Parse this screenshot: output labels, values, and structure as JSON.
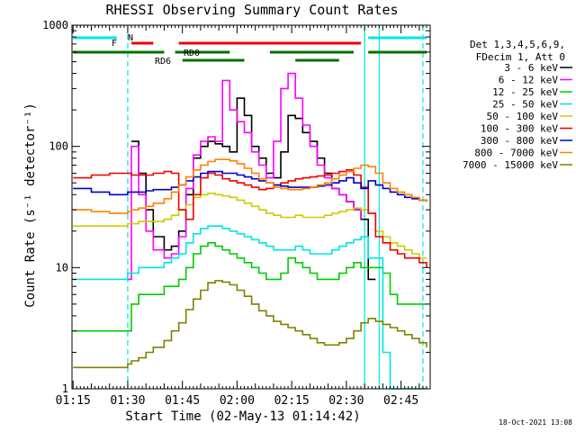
{
  "chart_data": {
    "type": "line",
    "title": "RHESSI Observing Summary Count Rates",
    "xlabel": "Start Time (02-May-13 01:14:42)",
    "ylabel": "Count Rate (s⁻¹ detector⁻¹)",
    "y_scale": "log",
    "ylim": [
      1,
      1000
    ],
    "xlim": [
      "01:14:42",
      "02:53:00"
    ],
    "x_tick_labels": [
      "01:15",
      "01:30",
      "01:45",
      "02:00",
      "02:15",
      "02:30",
      "02:45"
    ],
    "y_tick_labels": [
      "1",
      "10",
      "100",
      "1000"
    ],
    "legend_position": "right",
    "legend_header": [
      "Det 1,3,4,5,6,9,",
      "FDecim 1, Att 0"
    ],
    "timestamp": "18-Oct-2021 13:08",
    "flags": [
      {
        "label": "N",
        "color": "#00e5e5",
        "segments": [
          [
            "01:15",
            "01:27"
          ],
          [
            "02:36",
            "02:52"
          ]
        ]
      },
      {
        "label": "F",
        "color": "#ee0000",
        "segments": [
          [
            "01:31",
            "01:37"
          ],
          [
            "01:44",
            "02:34"
          ]
        ]
      },
      {
        "label": "RD0",
        "color": "#007000",
        "segments": [
          [
            "01:15",
            "01:40"
          ],
          [
            "01:43",
            "01:58"
          ],
          [
            "02:09",
            "02:32"
          ],
          [
            "02:36",
            "02:52"
          ]
        ]
      },
      {
        "label": "RD6",
        "color": "#007000",
        "segments": [
          [
            "01:45",
            "02:02"
          ],
          [
            "02:16",
            "02:28"
          ]
        ]
      }
    ],
    "vertical_markers": [
      {
        "time": "01:30",
        "style": "dashed",
        "color": "#00e5e5"
      },
      {
        "time": "02:35",
        "style": "solid",
        "color": "#00e5e5"
      },
      {
        "time": "02:39",
        "style": "solid",
        "color": "#00e5e5"
      },
      {
        "time": "02:51",
        "style": "dashed",
        "color": "#00e5e5"
      }
    ],
    "x": [
      "01:15",
      "01:20",
      "01:25",
      "01:27",
      "01:29",
      "01:30",
      "01:31",
      "01:33",
      "01:35",
      "01:37",
      "01:40",
      "01:42",
      "01:44",
      "01:46",
      "01:48",
      "01:50",
      "01:52",
      "01:54",
      "01:56",
      "01:58",
      "02:00",
      "02:02",
      "02:04",
      "02:06",
      "02:08",
      "02:10",
      "02:12",
      "02:14",
      "02:16",
      "02:18",
      "02:20",
      "02:22",
      "02:24",
      "02:26",
      "02:28",
      "02:30",
      "02:32",
      "02:34",
      "02:36",
      "02:38",
      "02:40",
      "02:42",
      "02:44",
      "02:46",
      "02:48",
      "02:50",
      "02:52"
    ],
    "series": [
      {
        "name": "3 - 6 keV",
        "color": "#000000",
        "values": [
          null,
          null,
          null,
          null,
          null,
          null,
          110,
          60,
          30,
          18,
          14,
          15,
          20,
          40,
          80,
          100,
          110,
          105,
          100,
          90,
          250,
          180,
          100,
          80,
          60,
          55,
          90,
          180,
          170,
          130,
          110,
          80,
          60,
          45,
          40,
          35,
          30,
          25,
          8,
          8,
          null,
          null,
          null,
          null,
          null,
          null,
          null
        ]
      },
      {
        "name": "6 - 12 keV",
        "color": "#ff00ff",
        "values": [
          null,
          null,
          null,
          null,
          null,
          8,
          100,
          40,
          20,
          14,
          12,
          13,
          18,
          45,
          85,
          110,
          120,
          110,
          350,
          200,
          160,
          130,
          90,
          70,
          55,
          110,
          300,
          400,
          250,
          150,
          100,
          70,
          55,
          45,
          40,
          35,
          30,
          25,
          null,
          null,
          null,
          null,
          null,
          null,
          null,
          null,
          null
        ]
      },
      {
        "name": "12 - 25 keV",
        "color": "#00cc00",
        "values": [
          3,
          3,
          3,
          3,
          3,
          3,
          5,
          6,
          6,
          6,
          7,
          7,
          8,
          10,
          13,
          15,
          16,
          15,
          14,
          13,
          12,
          11,
          10,
          9,
          8,
          8,
          9,
          12,
          11,
          10,
          9,
          8,
          8,
          8,
          9,
          10,
          11,
          10,
          10,
          10,
          9,
          6,
          5,
          5,
          5,
          5,
          5
        ]
      },
      {
        "name": "25 - 50 keV",
        "color": "#00e5e5",
        "values": [
          8,
          8,
          8,
          8,
          8,
          9,
          9,
          10,
          10,
          10,
          11,
          12,
          13,
          16,
          19,
          21,
          22,
          22,
          21,
          20,
          19,
          18,
          17,
          16,
          15,
          14,
          14,
          14,
          15,
          14,
          13,
          13,
          13,
          14,
          15,
          16,
          17,
          18,
          12,
          12,
          2,
          1,
          1,
          1,
          1,
          1,
          1
        ]
      },
      {
        "name": "50 - 100 keV",
        "color": "#cccc00",
        "values": [
          22,
          22,
          22,
          22,
          22,
          23,
          23,
          24,
          24,
          24,
          25,
          27,
          30,
          33,
          38,
          40,
          41,
          40,
          39,
          38,
          36,
          34,
          32,
          30,
          28,
          27,
          26,
          26,
          27,
          26,
          26,
          26,
          27,
          28,
          29,
          30,
          31,
          30,
          28,
          20,
          18,
          16,
          15,
          14,
          13,
          12,
          12
        ]
      },
      {
        "name": "100 - 300 keV",
        "color": "#ee0000",
        "values": [
          55,
          58,
          60,
          60,
          60,
          60,
          58,
          58,
          58,
          60,
          62,
          60,
          30,
          25,
          40,
          55,
          60,
          58,
          54,
          52,
          50,
          48,
          46,
          44,
          45,
          48,
          50,
          52,
          54,
          55,
          56,
          57,
          58,
          60,
          62,
          64,
          58,
          46,
          28,
          18,
          16,
          14,
          13,
          12,
          12,
          11,
          10
        ]
      },
      {
        "name": "300 - 800 keV",
        "color": "#0000cc",
        "values": [
          45,
          42,
          40,
          40,
          40,
          42,
          42,
          42,
          43,
          44,
          44,
          46,
          48,
          52,
          56,
          60,
          62,
          62,
          60,
          60,
          58,
          56,
          54,
          52,
          50,
          48,
          47,
          46,
          46,
          46,
          46,
          47,
          48,
          50,
          52,
          55,
          50,
          45,
          52,
          48,
          45,
          42,
          40,
          38,
          37,
          36,
          35
        ]
      },
      {
        "name": "800 - 7000 keV",
        "color": "#ff8000",
        "values": [
          30,
          29,
          28,
          28,
          28,
          29,
          30,
          31,
          32,
          34,
          37,
          42,
          48,
          56,
          64,
          70,
          75,
          78,
          78,
          76,
          72,
          66,
          60,
          54,
          50,
          46,
          45,
          44,
          44,
          45,
          46,
          48,
          50,
          54,
          58,
          62,
          66,
          70,
          68,
          60,
          50,
          45,
          42,
          40,
          38,
          36,
          35
        ]
      },
      {
        "name": "7000 - 15000 keV",
        "color": "#808000",
        "values": [
          1.5,
          1.5,
          1.5,
          1.5,
          1.5,
          1.6,
          1.7,
          1.8,
          2.0,
          2.2,
          2.5,
          3.0,
          3.5,
          4.5,
          5.5,
          6.5,
          7.5,
          7.8,
          7.6,
          7.2,
          6.5,
          5.8,
          5.0,
          4.4,
          4.0,
          3.6,
          3.4,
          3.2,
          3.0,
          2.8,
          2.6,
          2.4,
          2.3,
          2.3,
          2.4,
          2.6,
          3.0,
          3.5,
          3.8,
          3.6,
          3.4,
          3.2,
          3.0,
          2.8,
          2.6,
          2.4,
          2.2
        ]
      }
    ]
  }
}
